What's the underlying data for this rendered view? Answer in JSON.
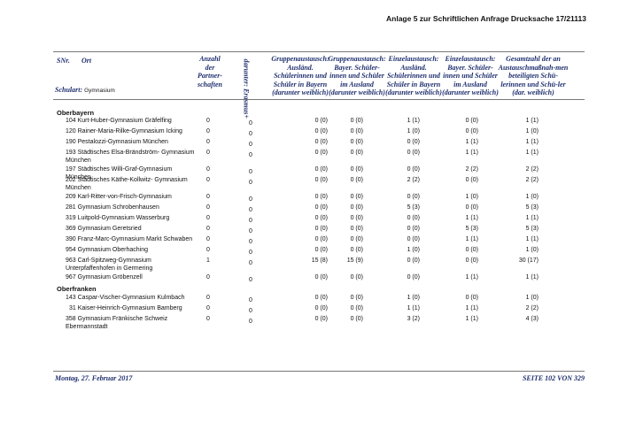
{
  "page_header": "Anlage 5 zur Schriftlichen Anfrage Drucksache 17/21113",
  "columns": {
    "snr": "SNr.",
    "ort": "Ort",
    "schulart": "Schulart:",
    "schulart_value": "Gymnasium",
    "partner": "Anzahl der Partner-schaften",
    "erasmus": "darunter: Erasmus+",
    "grp_ausl": "Gruppenaustausch: Ausländ. Schülerinnen und Schüler in Bayern (darunter weiblich)",
    "grp_bayer": "Gruppenaustausch: Bayer. Schüler-innen und Schüler im Ausland (darunter weiblich)",
    "einz_ausl": "Einzelaustausch: Ausländ. Schülerinnen und Schüler in Bayern (darunter weiblich)",
    "einz_bayer": "Einzelaustausch: Bayer. Schüler-innen und Schüler im Ausland (darunter weiblich)",
    "gesamt": "Gesamtzahl der an Austauschmaßnah-men beteiligten Schü-lerinnen und Schü-ler (dar. weiblich)"
  },
  "sections": [
    {
      "name": "Oberbayern",
      "rows": [
        {
          "school": "104 Kurt-Huber-Gymnasium Gräfelfing",
          "partner": "0",
          "erasmus": "0",
          "grp_ausl": "0 (0)",
          "grp_bayer": "0 (0)",
          "einz_ausl": "1 (1)",
          "einz_bayer": "0 (0)",
          "gesamt": "1 (1)"
        },
        {
          "school": "120 Rainer-Maria-Rilke-Gymnasium Icking",
          "partner": "0",
          "erasmus": "0",
          "grp_ausl": "0 (0)",
          "grp_bayer": "0 (0)",
          "einz_ausl": "1 (0)",
          "einz_bayer": "0 (0)",
          "gesamt": "1 (0)"
        },
        {
          "school": "190 Pestalozzi-Gymnasium München",
          "partner": "0",
          "erasmus": "0",
          "grp_ausl": "0 (0)",
          "grp_bayer": "0 (0)",
          "einz_ausl": "0 (0)",
          "einz_bayer": "1 (1)",
          "gesamt": "1 (1)"
        },
        {
          "school": "193 Städtisches Elsa-Brändström- Gymnasium München",
          "partner": "0",
          "erasmus": "0",
          "grp_ausl": "0 (0)",
          "grp_bayer": "0 (0)",
          "einz_ausl": "0 (0)",
          "einz_bayer": "1 (1)",
          "gesamt": "1 (1)"
        },
        {
          "school": "197 Städtisches Willi-Graf-Gymnasium München",
          "partner": "0",
          "erasmus": "0",
          "grp_ausl": "0 (0)",
          "grp_bayer": "0 (0)",
          "einz_ausl": "0 (0)",
          "einz_bayer": "2 (2)",
          "gesamt": "2 (2)"
        },
        {
          "school": "202 Städtisches Käthe-Kollwitz- Gymnasium München",
          "partner": "0",
          "erasmus": "0",
          "grp_ausl": "0 (0)",
          "grp_bayer": "0 (0)",
          "einz_ausl": "2 (2)",
          "einz_bayer": "0 (0)",
          "gesamt": "2 (2)"
        },
        {
          "school": "209 Karl-Ritter-von-Frisch-Gymnasium",
          "partner": "0",
          "erasmus": "0",
          "grp_ausl": "0 (0)",
          "grp_bayer": "0 (0)",
          "einz_ausl": "0 (0)",
          "einz_bayer": "1 (0)",
          "gesamt": "1 (0)"
        },
        {
          "school": "281 Gymnasium Schrobenhausen",
          "partner": "0",
          "erasmus": "0",
          "grp_ausl": "0 (0)",
          "grp_bayer": "0 (0)",
          "einz_ausl": "5 (3)",
          "einz_bayer": "0 (0)",
          "gesamt": "5 (3)"
        },
        {
          "school": "319 Luitpold-Gymnasium Wasserburg",
          "partner": "0",
          "erasmus": "0",
          "grp_ausl": "0 (0)",
          "grp_bayer": "0 (0)",
          "einz_ausl": "0 (0)",
          "einz_bayer": "1 (1)",
          "gesamt": "1 (1)"
        },
        {
          "school": "369 Gymnasium Geretsried",
          "partner": "0",
          "erasmus": "0",
          "grp_ausl": "0 (0)",
          "grp_bayer": "0 (0)",
          "einz_ausl": "0 (0)",
          "einz_bayer": "5 (3)",
          "gesamt": "5 (3)"
        },
        {
          "school": "390 Franz-Marc-Gymnasium Markt Schwaben",
          "partner": "0",
          "erasmus": "0",
          "grp_ausl": "0 (0)",
          "grp_bayer": "0 (0)",
          "einz_ausl": "0 (0)",
          "einz_bayer": "1 (1)",
          "gesamt": "1 (1)"
        },
        {
          "school": "954 Gymnasium Oberhaching",
          "partner": "0",
          "erasmus": "0",
          "grp_ausl": "0 (0)",
          "grp_bayer": "0 (0)",
          "einz_ausl": "1 (0)",
          "einz_bayer": "0 (0)",
          "gesamt": "1 (0)"
        },
        {
          "school": "963 Carl-Spitzweg-Gymnasium Unterpfaffenhofen in Germering",
          "partner": "1",
          "erasmus": "0",
          "grp_ausl": "15 (8)",
          "grp_bayer": "15 (9)",
          "einz_ausl": "0 (0)",
          "einz_bayer": "0 (0)",
          "gesamt": "30 (17)"
        },
        {
          "school": "967 Gymnasium Gröbenzell",
          "partner": "0",
          "erasmus": "0",
          "grp_ausl": "0 (0)",
          "grp_bayer": "0 (0)",
          "einz_ausl": "0 (0)",
          "einz_bayer": "1 (1)",
          "gesamt": "1 (1)"
        }
      ]
    },
    {
      "name": "Oberfranken",
      "rows": [
        {
          "school": "143 Caspar-Vischer-Gymnasium Kulmbach",
          "partner": "0",
          "erasmus": "0",
          "grp_ausl": "0 (0)",
          "grp_bayer": "0 (0)",
          "einz_ausl": "1 (0)",
          "einz_bayer": "0 (0)",
          "gesamt": "1 (0)"
        },
        {
          "school": "31 Kaiser-Heinrich-Gymnasium Bamberg",
          "partner": "0",
          "erasmus": "0",
          "grp_ausl": "0 (0)",
          "grp_bayer": "0 (0)",
          "einz_ausl": "1 (1)",
          "einz_bayer": "1 (1)",
          "gesamt": "2 (2)"
        },
        {
          "school": "358 Gymnasium Fränkische Schweiz Ebermannstadt",
          "partner": "0",
          "erasmus": "0",
          "grp_ausl": "0 (0)",
          "grp_bayer": "0 (0)",
          "einz_ausl": "3 (2)",
          "einz_bayer": "1 (1)",
          "gesamt": "4 (3)"
        }
      ]
    }
  ],
  "footer": {
    "date": "Montag, 27. Februar 2017",
    "page": "SEITE 102 VON 329"
  }
}
